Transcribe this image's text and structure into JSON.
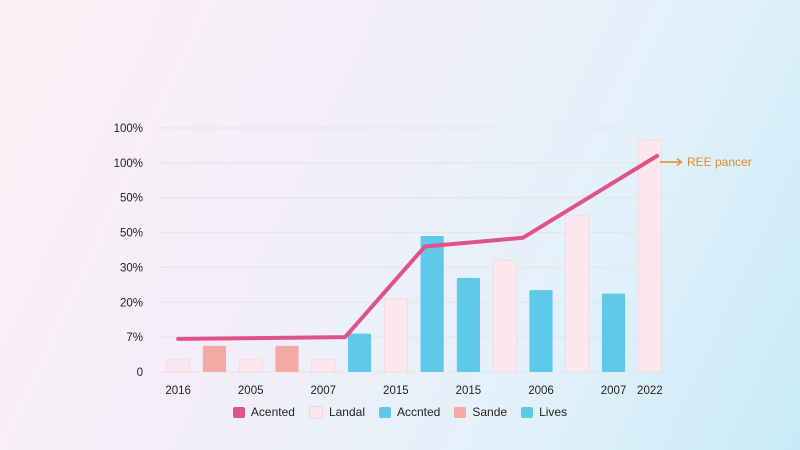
{
  "chart_data": {
    "type": "bar",
    "categories": [
      "2016",
      "",
      "2005",
      "",
      "2007",
      "",
      "2015",
      "",
      "2015",
      "",
      "2006",
      "",
      "2007",
      "2022"
    ],
    "y_tick_labels": [
      "0",
      "7%",
      "20%",
      "30%",
      "50%",
      "50%",
      "100%",
      "100%"
    ],
    "bars": [
      {
        "value": 0.35,
        "series": "Landal"
      },
      {
        "value": 0.75,
        "series": "Sande"
      },
      {
        "value": 0.35,
        "series": "Landal"
      },
      {
        "value": 0.75,
        "series": "Sande"
      },
      {
        "value": 0.35,
        "series": "Landal"
      },
      {
        "value": 1.1,
        "series": "Lives"
      },
      {
        "value": 2.1,
        "series": "Landal"
      },
      {
        "value": 3.9,
        "series": "Lives"
      },
      {
        "value": 2.7,
        "series": "Lives"
      },
      {
        "value": 3.2,
        "series": "Landal"
      },
      {
        "value": 2.35,
        "series": "Lives"
      },
      {
        "value": 4.5,
        "series": "Landal"
      },
      {
        "value": 2.25,
        "series": "Lives"
      },
      {
        "value": 6.65,
        "series": "Landal"
      }
    ],
    "line": {
      "series": "Acented",
      "points": [
        [
          0,
          0.95
        ],
        [
          4.6,
          1.0
        ],
        [
          6.8,
          3.6
        ],
        [
          9.5,
          3.85
        ],
        [
          13.2,
          6.2
        ]
      ]
    },
    "annotation": {
      "text": "REE pancer"
    },
    "legend": [
      {
        "name": "Acented",
        "color": "#e0528a"
      },
      {
        "name": "Landal",
        "color": "#fce8ec"
      },
      {
        "name": "Accnted",
        "color": "#5ec9e8"
      },
      {
        "name": "Sande",
        "color": "#f4a9a5"
      },
      {
        "name": "Lives",
        "color": "#5ec9e8"
      }
    ],
    "ylim": [
      0,
      7
    ],
    "grid": true,
    "legend_position": "bottom"
  },
  "colors": {
    "line": "#e0528a",
    "Landal": "#fce8ec",
    "Sande": "#f4a9a5",
    "Lives": "#5ec9e8",
    "annotation": "#e08a2a",
    "grid": "#e4e4e8"
  }
}
